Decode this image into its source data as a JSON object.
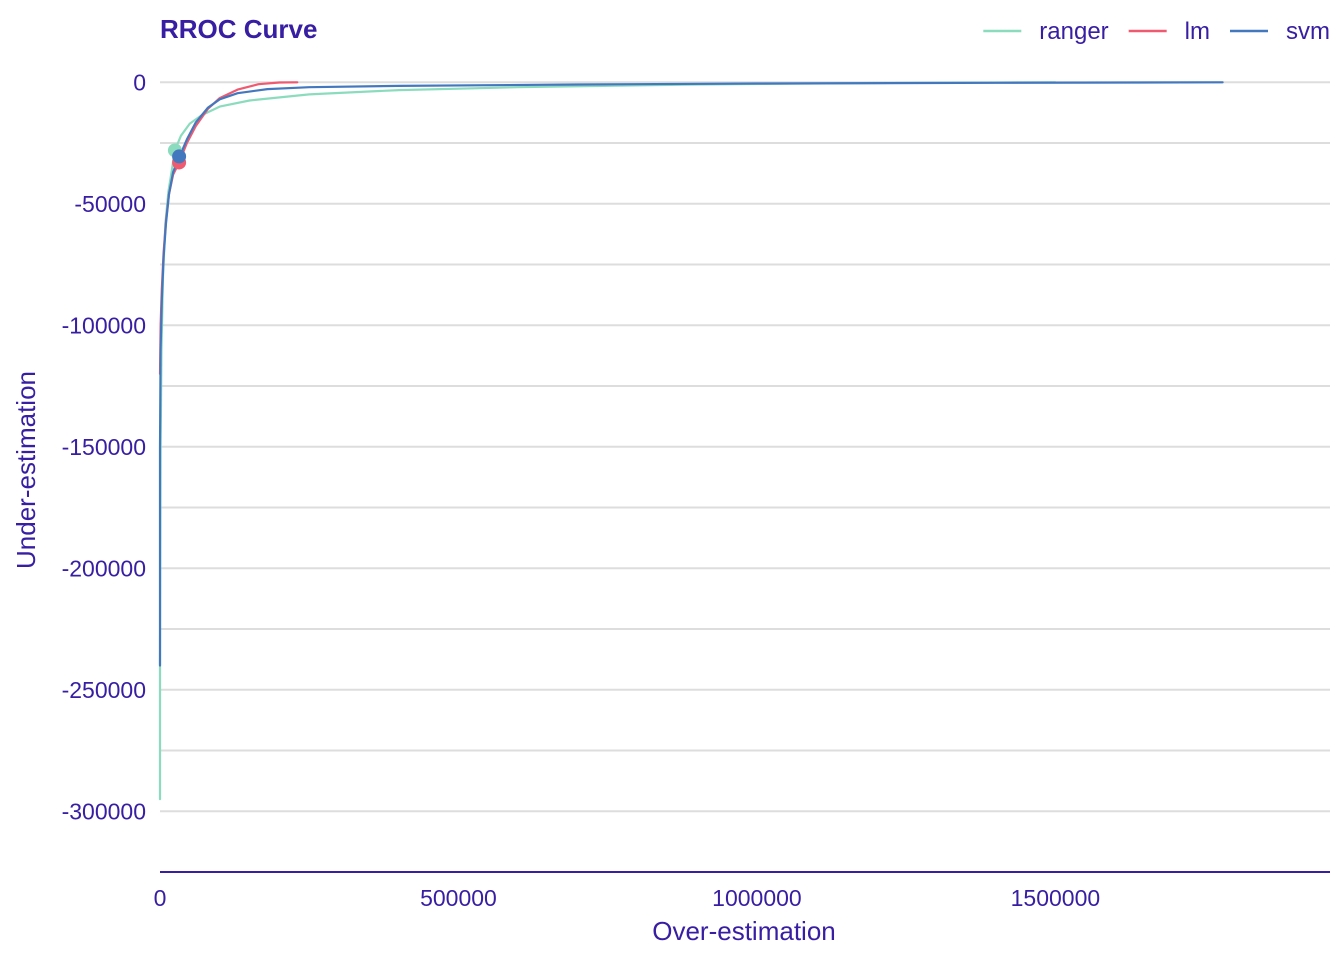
{
  "chart_data": {
    "type": "line",
    "title": "RROC Curve",
    "xlabel": "Over-estimation",
    "ylabel": "Under-estimation",
    "xlim": [
      0,
      1960000
    ],
    "ylim": [
      -325000,
      10000
    ],
    "x_ticks": [
      0,
      500000,
      1000000,
      1500000
    ],
    "x_tick_labels": [
      "0",
      "500000",
      "1000000",
      "1500000"
    ],
    "y_ticks": [
      0,
      -50000,
      -100000,
      -150000,
      -200000,
      -250000,
      -300000
    ],
    "y_tick_labels": [
      "0",
      "-50000",
      "-100000",
      "-150000",
      "-200000",
      "-250000",
      "-300000"
    ],
    "y_minor_ticks": [
      -25000,
      -75000,
      -125000,
      -175000,
      -225000,
      -275000
    ],
    "grid": true,
    "legend_position": "top-right",
    "colors": {
      "text": "#371EA3",
      "grid": "#DDDDDD",
      "axis": "#371EA3"
    },
    "series": [
      {
        "name": "ranger",
        "color": "#8BDCBE",
        "x": [
          0,
          0,
          1000,
          2500,
          5000,
          9000,
          14000,
          20000,
          25000,
          35000,
          50000,
          70000,
          100000,
          150000,
          250000,
          400000,
          600000,
          900000,
          1200000,
          1500000
        ],
        "y": [
          -295000,
          -240000,
          -150000,
          -110000,
          -80000,
          -58000,
          -45000,
          -36000,
          -28000,
          -22000,
          -17000,
          -13500,
          -10000,
          -7500,
          -5000,
          -3200,
          -2000,
          -900,
          -300,
          0
        ],
        "point": {
          "x": 25000,
          "y": -28000
        }
      },
      {
        "name": "lm",
        "color": "#F05A71",
        "x": [
          0,
          1000,
          3000,
          6000,
          10000,
          15000,
          22000,
          32000,
          45000,
          60000,
          80000,
          100000,
          130000,
          165000,
          200000,
          230000
        ],
        "y": [
          -120000,
          -100000,
          -85000,
          -70000,
          -57000,
          -46000,
          -38000,
          -33000,
          -25000,
          -18000,
          -11000,
          -6500,
          -3000,
          -800,
          -100,
          0
        ],
        "point": {
          "x": 32000,
          "y": -33000
        }
      },
      {
        "name": "svm",
        "color": "#4378BF",
        "x": [
          0,
          0,
          1000,
          3000,
          6000,
          10000,
          15000,
          22000,
          32000,
          45000,
          60000,
          80000,
          100000,
          130000,
          180000,
          250000,
          400000,
          700000,
          1000000,
          1400000,
          1780000
        ],
        "y": [
          -240000,
          -150000,
          -110000,
          -90000,
          -72000,
          -58000,
          -46000,
          -37000,
          -31000,
          -23500,
          -16500,
          -10500,
          -7000,
          -4500,
          -2800,
          -2000,
          -1500,
          -900,
          -500,
          -200,
          0
        ],
        "point": {
          "x": 32000,
          "y": -30500
        }
      }
    ]
  }
}
